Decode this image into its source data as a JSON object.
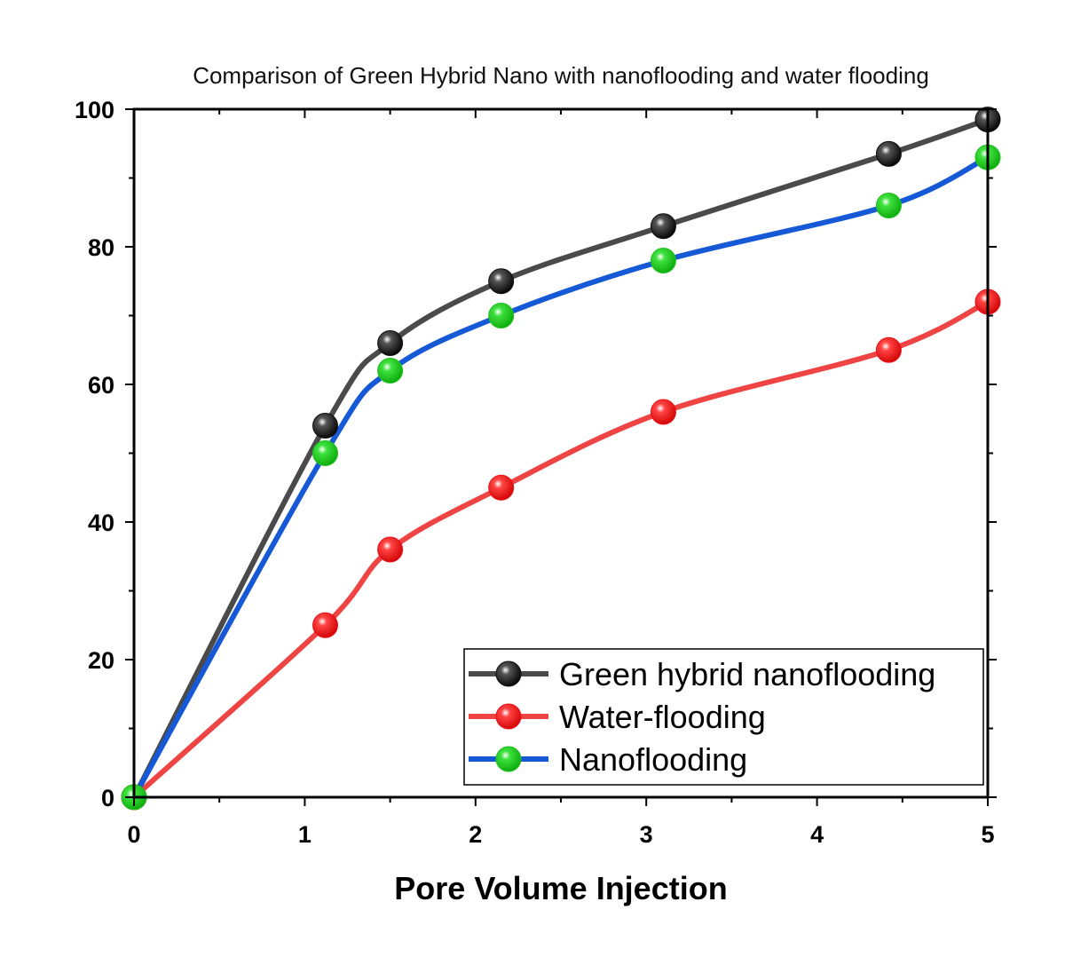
{
  "chart_data": {
    "type": "line",
    "title": "Comparison of Green Hybrid Nano with nanoflooding and water flooding",
    "xlabel": "Pore Volume Injection",
    "ylabel": "",
    "xlim": [
      0,
      5
    ],
    "ylim": [
      0,
      100
    ],
    "x_ticks": [
      0,
      1,
      2,
      3,
      4,
      5
    ],
    "y_ticks": [
      0,
      20,
      40,
      60,
      80,
      100
    ],
    "grid": false,
    "legend_position": "bottom-right",
    "series": [
      {
        "name": "Green hybrid nanoflooding",
        "line_color": "#4a4a4a",
        "marker_color": "#111111",
        "x": [
          0,
          1.12,
          1.5,
          2.15,
          3.1,
          4.42,
          5
        ],
        "y": [
          0,
          54,
          66,
          75,
          83,
          93.5,
          98.5
        ]
      },
      {
        "name": "Water-flooding",
        "line_color": "#ef4444",
        "marker_color": "#e8141c",
        "x": [
          0,
          1.12,
          1.5,
          2.15,
          3.1,
          4.42,
          5
        ],
        "y": [
          0,
          25,
          36,
          45,
          56,
          65,
          72
        ]
      },
      {
        "name": "Nanoflooding",
        "line_color": "#1559d6",
        "marker_color": "#1fc21f",
        "x": [
          0,
          1.12,
          1.5,
          2.15,
          3.1,
          4.42,
          5
        ],
        "y": [
          0,
          50,
          62,
          70,
          78,
          86,
          93
        ]
      }
    ]
  }
}
